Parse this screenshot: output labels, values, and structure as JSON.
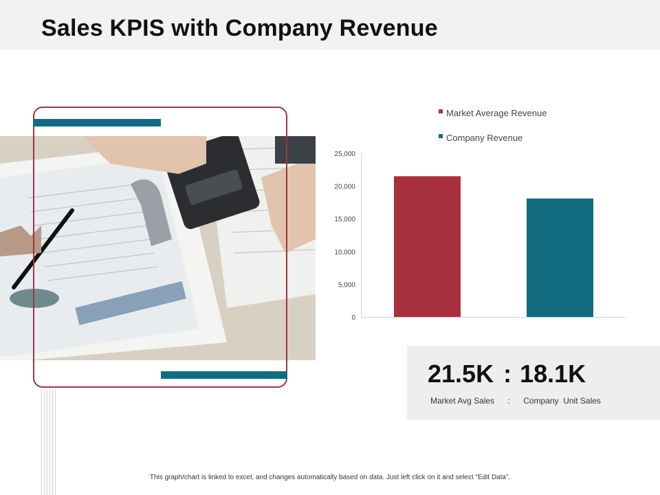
{
  "header": {
    "title": "Sales KPIS with Company Revenue"
  },
  "colors": {
    "market": "#a8313f",
    "company": "#136b80",
    "frame": "#a0353f"
  },
  "chart_data": {
    "type": "bar",
    "categories": [
      "Market Average Revenue",
      "Company Revenue"
    ],
    "values": [
      21500,
      18100
    ],
    "colors": [
      "#a8313f",
      "#136b80"
    ],
    "legend": [
      "Market Average Revenue",
      "Company Revenue"
    ],
    "legend_position": "top",
    "ylim": [
      0,
      25000
    ],
    "yticks": [
      "25,000",
      "20,000",
      "15,000",
      "10,000",
      "5,000",
      "0"
    ],
    "ytick_values": [
      25000,
      20000,
      15000,
      10000,
      5000,
      0
    ],
    "grid": false
  },
  "kpi": {
    "value_market": "21.5K",
    "separator": ":",
    "value_company": "18.1K",
    "label_market": "Market Avg Sales",
    "label_separator": ":",
    "label_company": "Company  Unit Sales"
  },
  "footer": {
    "note": "This graph/chart is linked to excel, and changes automatically based on data. Just left click on it and select “Edit Data”."
  }
}
